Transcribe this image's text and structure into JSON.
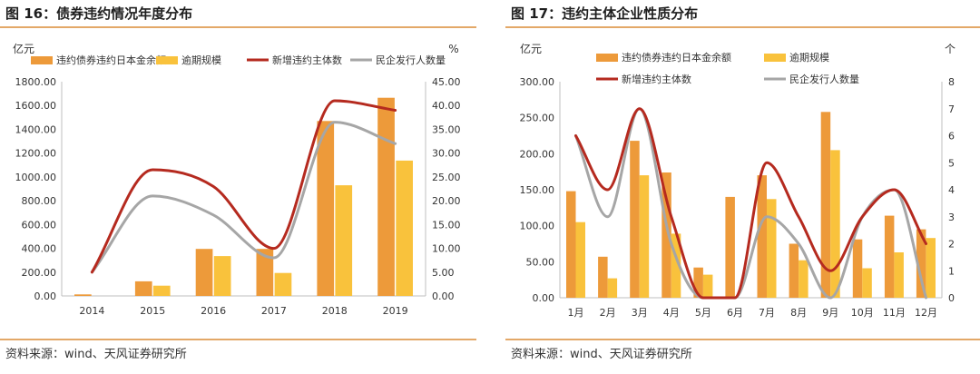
{
  "figures": [
    {
      "title": "图 16：债券违约情况年度分布",
      "source": "资料来源：wind、天风证券研究所"
    },
    {
      "title": "图 17：违约主体企业性质分布",
      "source": "资料来源：wind、天风证券研究所"
    }
  ],
  "colors": {
    "bar_primary": "#ed9a3a",
    "bar_secondary": "#f9c23c",
    "line_primary": "#b52a1f",
    "line_secondary": "#a6a6a6",
    "rule": "#e3a868",
    "axis": "#bfbfbf"
  },
  "chart_data": [
    {
      "type": "bar",
      "title": "图 16：债券违约情况年度分布",
      "categories": [
        "2014",
        "2015",
        "2016",
        "2017",
        "2018",
        "2019"
      ],
      "ylabel_left": "亿元",
      "ylabel_right": "%",
      "ylim_left": [
        0,
        1800
      ],
      "ylim_right": [
        0,
        45
      ],
      "yticks_left": [
        "0.00",
        "200.00",
        "400.00",
        "600.00",
        "800.00",
        "1000.00",
        "1200.00",
        "1400.00",
        "1600.00",
        "1800.00"
      ],
      "yticks_right": [
        "0.00",
        "5.00",
        "10.00",
        "15.00",
        "20.00",
        "25.00",
        "30.00",
        "35.00",
        "40.00",
        "45.00"
      ],
      "legend_position": "top",
      "series": [
        {
          "name": "违约债券违约日本金余额",
          "kind": "bar",
          "axis": "left",
          "values": [
            13,
            123,
            395,
            395,
            1470,
            1665
          ]
        },
        {
          "name": "逾期规模",
          "kind": "bar",
          "axis": "left",
          "values": [
            0,
            86,
            335,
            193,
            930,
            1137
          ]
        },
        {
          "name": "新增违约主体数",
          "kind": "line",
          "axis": "right",
          "values": [
            5,
            26.5,
            23,
            10,
            41,
            39
          ]
        },
        {
          "name": "民企发行人数量",
          "kind": "line",
          "axis": "right",
          "values": [
            5,
            21,
            17,
            8,
            36.5,
            32
          ]
        }
      ]
    },
    {
      "type": "bar",
      "title": "图 17：违约主体企业性质分布",
      "categories": [
        "1月",
        "2月",
        "3月",
        "4月",
        "5月",
        "6月",
        "7月",
        "8月",
        "9月",
        "10月",
        "11月",
        "12月"
      ],
      "ylabel_left": "亿元",
      "ylabel_right": "个",
      "ylim_left": [
        0,
        300
      ],
      "ylim_right": [
        0,
        8
      ],
      "yticks_left": [
        "0.00",
        "50.00",
        "100.00",
        "150.00",
        "200.00",
        "250.00",
        "300.00"
      ],
      "yticks_right": [
        "0",
        "1",
        "2",
        "3",
        "4",
        "5",
        "6",
        "7",
        "8"
      ],
      "legend_position": "top",
      "series": [
        {
          "name": "违约债券违约日本金余额",
          "kind": "bar",
          "axis": "left",
          "values": [
            148,
            57,
            218,
            174,
            42,
            140,
            170,
            75,
            258,
            81,
            114,
            95
          ]
        },
        {
          "name": "逾期规模",
          "kind": "bar",
          "axis": "left",
          "values": [
            105,
            27,
            170,
            89,
            32,
            0,
            137,
            52,
            205,
            41,
            63,
            83
          ]
        },
        {
          "name": "新增违约主体数",
          "kind": "line",
          "axis": "right",
          "values": [
            6,
            4,
            7,
            3,
            0,
            0,
            5,
            3,
            1,
            3,
            4,
            2
          ]
        },
        {
          "name": "民企发行人数量",
          "kind": "line",
          "axis": "right",
          "values": [
            6,
            3,
            7,
            2,
            0,
            0,
            3,
            2,
            0,
            3,
            4,
            0
          ]
        }
      ]
    }
  ]
}
